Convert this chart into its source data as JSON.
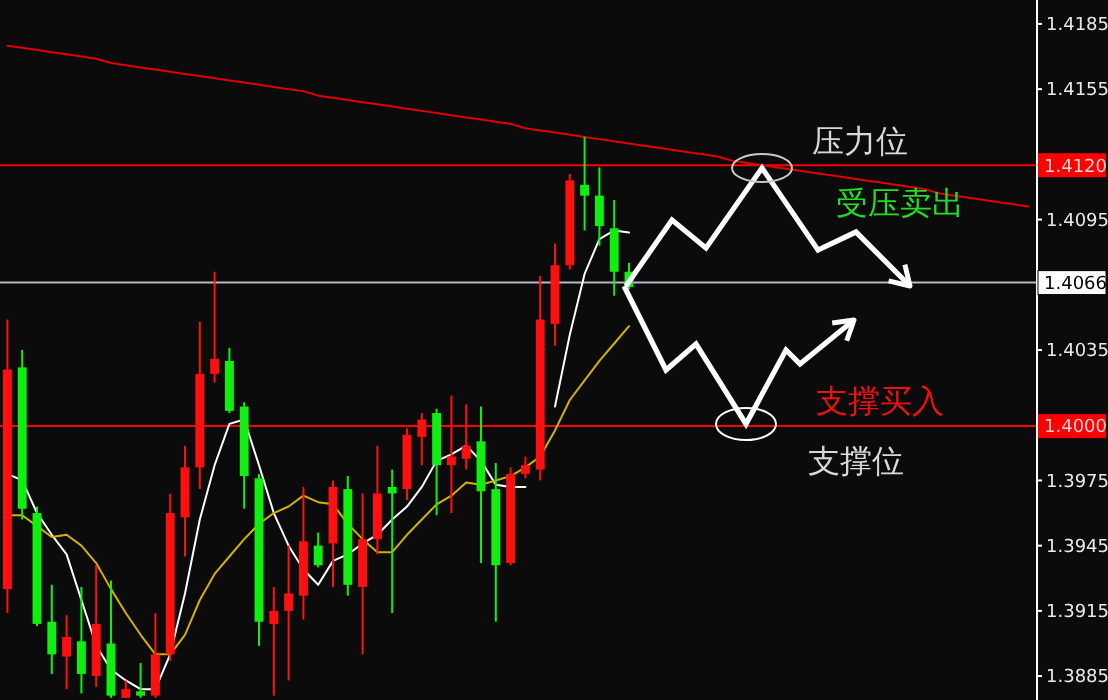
{
  "chart_data": {
    "type": "candlestick",
    "categories": [
      null,
      null,
      null,
      null,
      null,
      null,
      null,
      null,
      null,
      null,
      null,
      null,
      null,
      null,
      null,
      null,
      null,
      null,
      null,
      null,
      null,
      null,
      null,
      null,
      null,
      null,
      null,
      null,
      null,
      null,
      null,
      null,
      null,
      null,
      null,
      null,
      null,
      null,
      null,
      null,
      null,
      null,
      null,
      null,
      null,
      null,
      null,
      null,
      null,
      null,
      null,
      null,
      null,
      null,
      null,
      null,
      null,
      null,
      null,
      null,
      null,
      null,
      null,
      null,
      null,
      null,
      null,
      null,
      null,
      null
    ],
    "ohlc": [
      [
        1.3925,
        1.4049,
        1.3914,
        1.4026
      ],
      [
        1.4027,
        1.4035,
        1.3957,
        1.3962
      ],
      [
        1.396,
        1.3963,
        1.3908,
        1.3909
      ],
      [
        1.391,
        1.3927,
        1.3886,
        1.3895
      ],
      [
        1.3894,
        1.3913,
        1.3879,
        1.3903
      ],
      [
        1.3901,
        1.3926,
        1.3877,
        1.3886
      ],
      [
        1.3885,
        1.3936,
        1.388,
        1.3909
      ],
      [
        1.39,
        1.3929,
        1.3875,
        1.3876
      ],
      [
        1.3875,
        1.3883,
        1.3875,
        1.3879
      ],
      [
        1.3878,
        1.3891,
        1.3875,
        1.3876
      ],
      [
        1.3876,
        1.3914,
        1.3875,
        1.3895
      ],
      [
        1.3895,
        1.3969,
        1.3892,
        1.396
      ],
      [
        1.3958,
        1.3991,
        1.394,
        1.3981
      ],
      [
        1.3981,
        1.4048,
        1.3971,
        1.4024
      ],
      [
        1.4024,
        1.4071,
        1.402,
        1.4031
      ],
      [
        1.403,
        1.4036,
        1.4006,
        1.4007
      ],
      [
        1.4009,
        1.4011,
        1.3962,
        1.3977
      ],
      [
        1.3976,
        1.3978,
        1.3899,
        1.391
      ],
      [
        1.3909,
        1.3926,
        1.3876,
        1.3915
      ],
      [
        1.3915,
        1.3945,
        1.3883,
        1.3923
      ],
      [
        1.3922,
        1.3972,
        1.3911,
        1.3947
      ],
      [
        1.3945,
        1.3951,
        1.3935,
        1.3936
      ],
      [
        1.3946,
        1.3975,
        1.3926,
        1.3972
      ],
      [
        1.3971,
        1.3977,
        1.3922,
        1.3927
      ],
      [
        1.3926,
        1.3969,
        1.3895,
        1.3948
      ],
      [
        1.3948,
        1.3991,
        1.3941,
        1.3969
      ],
      [
        1.3972,
        1.398,
        1.3914,
        1.3969
      ],
      [
        1.3971,
        1.3999,
        1.3966,
        1.3996
      ],
      [
        1.3995,
        1.4006,
        1.3982,
        1.4003
      ],
      [
        1.4006,
        1.4008,
        1.3959,
        1.3982
      ],
      [
        1.3982,
        1.4014,
        1.396,
        1.3986
      ],
      [
        1.3985,
        1.401,
        1.398,
        1.3991
      ],
      [
        1.3993,
        1.4009,
        1.3937,
        1.397
      ],
      [
        1.3971,
        1.3983,
        1.391,
        1.3936
      ],
      [
        1.3937,
        1.3981,
        1.3936,
        1.3978
      ],
      [
        1.3978,
        1.3986,
        1.3976,
        1.3982
      ],
      [
        1.398,
        1.4069,
        1.3975,
        1.4049
      ],
      [
        1.4047,
        1.4084,
        1.4037,
        1.4074
      ],
      [
        1.4074,
        1.4116,
        1.4072,
        1.4113
      ],
      [
        1.4111,
        1.4133,
        1.409,
        1.4106
      ],
      [
        1.4106,
        1.4119,
        1.4083,
        1.4092
      ],
      [
        1.4091,
        1.4104,
        1.406,
        1.4071
      ],
      [
        1.4071,
        1.4075,
        1.4063,
        1.4064
      ],
      null,
      null,
      null,
      null,
      null,
      null,
      null,
      null,
      null,
      null,
      null,
      null,
      null,
      null,
      null,
      null,
      null,
      null,
      null,
      null,
      null,
      null,
      null,
      null,
      null,
      null,
      null
    ],
    "series": [
      {
        "type": "line",
        "color": "#ffffff",
        "values": [
          1.3978,
          1.3975,
          1.396,
          1.395,
          1.3941,
          1.392,
          1.3899,
          1.3888,
          1.3883,
          1.3879,
          1.3879,
          1.3895,
          1.3923,
          1.3957,
          1.3982,
          1.4001,
          1.4003,
          1.3982,
          1.396,
          1.3945,
          1.3934,
          1.3927,
          1.3938,
          1.3941,
          1.3946,
          1.395,
          1.3957,
          1.3963,
          1.3972,
          1.3984,
          1.3987,
          1.3991,
          1.3984,
          1.3973,
          1.3972,
          1.3972,
          null,
          1.4009,
          1.4042,
          1.407,
          1.4086,
          1.409,
          1.4089,
          null,
          null,
          null,
          null,
          null,
          null,
          null,
          null,
          null,
          null,
          null,
          null,
          null,
          null,
          null,
          null,
          null,
          null,
          null,
          null,
          null,
          null,
          null,
          null,
          null,
          null,
          null
        ]
      },
      {
        "type": "line",
        "color": "#d4b000",
        "values": [
          1.3959,
          1.3959,
          1.3954,
          1.3949,
          1.395,
          1.3945,
          1.3937,
          1.3925,
          1.3914,
          1.3904,
          1.3895,
          1.3895,
          1.3904,
          1.392,
          1.3932,
          1.394,
          1.3948,
          1.3955,
          1.396,
          1.3963,
          1.3968,
          1.3965,
          1.3964,
          1.3955,
          1.3948,
          1.3942,
          1.3942,
          1.395,
          1.3957,
          1.3964,
          1.3968,
          1.3974,
          1.3973,
          1.3975,
          1.3977,
          1.3981,
          1.3986,
          1.3998,
          1.4012,
          1.4021,
          1.403,
          1.4038,
          1.4046,
          null,
          null,
          null,
          null,
          null,
          null,
          null,
          null,
          null,
          null,
          null,
          null,
          null,
          null,
          null,
          null,
          null,
          null,
          null,
          null,
          null,
          null,
          null,
          null,
          null,
          null,
          null
        ]
      },
      {
        "type": "line",
        "color": "#e00000",
        "values": [
          1.4175,
          1.4174,
          1.4173,
          1.4172,
          1.4171,
          1.417,
          1.4169,
          1.4167,
          1.4166,
          1.4165,
          1.4164,
          1.4163,
          1.4162,
          1.4161,
          1.416,
          1.4159,
          1.4158,
          1.4157,
          1.4156,
          1.4155,
          1.4154,
          1.4152,
          1.4151,
          1.415,
          1.4149,
          1.4148,
          1.4147,
          1.4146,
          1.4145,
          1.4144,
          1.4143,
          1.4142,
          1.4141,
          1.414,
          1.4139,
          1.4137,
          1.4136,
          1.4135,
          1.4134,
          1.4133,
          1.4132,
          1.4131,
          1.413,
          1.4129,
          1.4128,
          1.4127,
          1.4126,
          1.4125,
          1.4124,
          1.4122,
          1.4121,
          1.412,
          1.4119,
          1.4118,
          1.4117,
          1.4116,
          1.4115,
          1.4114,
          1.4113,
          1.4112,
          1.4111,
          1.411,
          1.4109,
          1.4107,
          1.4106,
          1.4105,
          1.4104,
          1.4103,
          1.4102,
          1.4101
        ]
      }
    ],
    "ylim": [
      1.3874,
      1.4196
    ],
    "yticks": [
      1.4185,
      1.4155,
      1.4095,
      1.4035,
      1.3975,
      1.3945,
      1.3915,
      1.3885
    ],
    "tick_labels": "y",
    "ref_lines": [
      {
        "axis": "y",
        "value": 1.412,
        "label": "1.4120",
        "color": "#ff0000"
      },
      {
        "axis": "y",
        "value": 1.4066,
        "label": "1.4066",
        "color": "#b8b8c8"
      },
      {
        "axis": "y",
        "value": 1.4,
        "label": "1.4000",
        "color": "#ff0000"
      }
    ],
    "annotations": [
      "压力位",
      "受压卖出",
      "支撑买入",
      "支撑位"
    ]
  }
}
